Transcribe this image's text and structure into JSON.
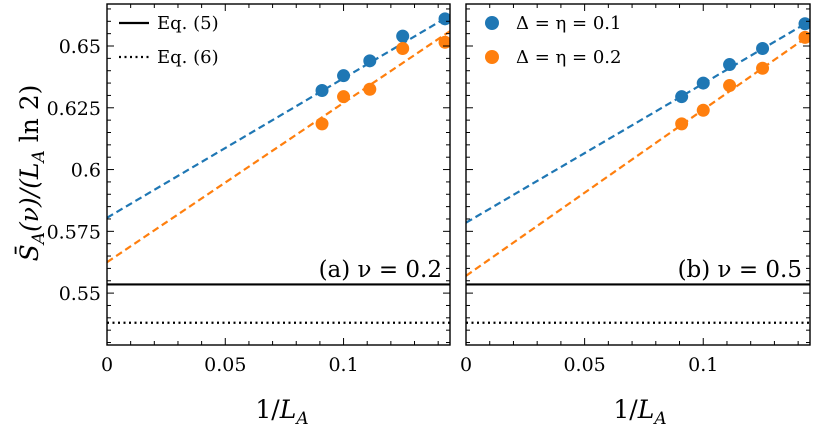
{
  "chart_data": [
    {
      "type": "scatter",
      "panel_label": "(a) ν = 0.2",
      "xlabel": "1/L_A",
      "ylabel": "S̄_A(ν)/(L_A ln 2)",
      "xlim": [
        0,
        0.145
      ],
      "ylim": [
        0.529,
        0.667
      ],
      "x_ticks": [
        0,
        0.05,
        0.1
      ],
      "x_tick_labels": [
        "0",
        "0.05",
        "0.1"
      ],
      "y_ticks": [
        0.55,
        0.575,
        0.6,
        0.625,
        0.65
      ],
      "y_tick_labels": [
        "0.55",
        "0.575",
        "0.6",
        "0.625",
        "0.65"
      ],
      "grid": false,
      "legend": {
        "position": "top-left",
        "entries": [
          {
            "label": "Eq. (5)",
            "style": "solid",
            "color": "#000000"
          },
          {
            "label": "Eq. (6)",
            "style": "dotted",
            "color": "#000000"
          }
        ]
      },
      "series": [
        {
          "label": "Δ = η = 0.1",
          "color": "#1f77b4",
          "x": [
            0.0909,
            0.1,
            0.1111,
            0.125,
            0.1429
          ],
          "y": [
            0.632,
            0.638,
            0.644,
            0.654,
            0.661
          ],
          "fit": {
            "intercept": 0.5805,
            "slope": 0.5645
          }
        },
        {
          "label": "Δ = η = 0.2",
          "color": "#ff7f0e",
          "x": [
            0.0909,
            0.1,
            0.1111,
            0.125,
            0.1429
          ],
          "y": [
            0.6185,
            0.6295,
            0.6325,
            0.649,
            0.6515
          ],
          "fit": {
            "intercept": 0.5625,
            "slope": 0.645
          }
        }
      ],
      "reference_lines": [
        {
          "label": "Eq. (5)",
          "y": 0.5535,
          "style": "solid"
        },
        {
          "label": "Eq. (6)",
          "y": 0.538,
          "style": "dotted"
        }
      ]
    },
    {
      "type": "scatter",
      "panel_label": "(b) ν = 0.5",
      "xlabel": "1/L_A",
      "xlim": [
        0,
        0.145
      ],
      "ylim": [
        0.529,
        0.667
      ],
      "x_ticks": [
        0,
        0.05,
        0.1
      ],
      "x_tick_labels": [
        "0",
        "0.05",
        "0.1"
      ],
      "grid": false,
      "legend": {
        "position": "top-left",
        "entries": [
          {
            "label": "Δ = η = 0.1",
            "marker": "circle",
            "color": "#1f77b4"
          },
          {
            "label": "Δ = η = 0.2",
            "marker": "circle",
            "color": "#ff7f0e"
          }
        ]
      },
      "series": [
        {
          "label": "Δ = η = 0.1",
          "color": "#1f77b4",
          "x": [
            0.0909,
            0.1,
            0.1111,
            0.125,
            0.1429
          ],
          "y": [
            0.6295,
            0.635,
            0.6425,
            0.649,
            0.659
          ],
          "fit": {
            "intercept": 0.5785,
            "slope": 0.563
          }
        },
        {
          "label": "Δ = η = 0.2",
          "color": "#ff7f0e",
          "x": [
            0.0909,
            0.1,
            0.1111,
            0.125,
            0.1429
          ],
          "y": [
            0.6185,
            0.624,
            0.634,
            0.641,
            0.6535
          ],
          "fit": {
            "intercept": 0.557,
            "slope": 0.6724
          }
        }
      ],
      "reference_lines": [
        {
          "label": "Eq. (5)",
          "y": 0.5535,
          "style": "solid"
        },
        {
          "label": "Eq. (6)",
          "y": 0.538,
          "style": "dotted"
        }
      ]
    }
  ]
}
